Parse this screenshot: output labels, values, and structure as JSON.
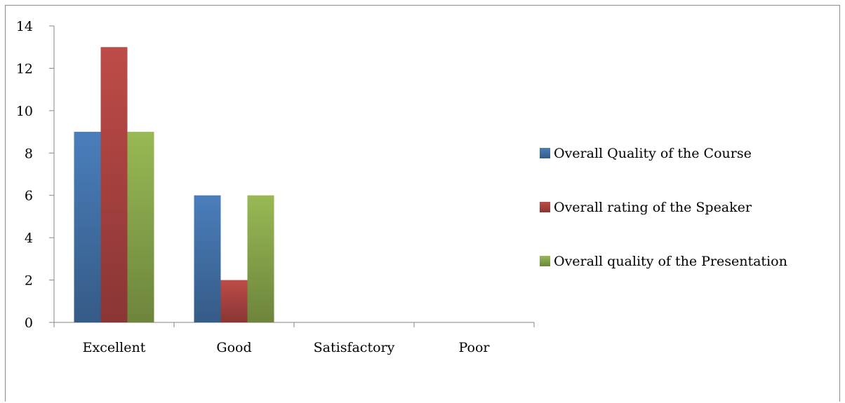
{
  "chart_data": {
    "type": "bar",
    "categories": [
      "Excellent",
      "Good",
      "Satisfactory",
      "Poor"
    ],
    "series": [
      {
        "name": "Overall Quality of the Course",
        "values": [
          9,
          6,
          0,
          0
        ],
        "color": "#4a7ebb"
      },
      {
        "name": "Overall rating of the Speaker",
        "values": [
          13,
          2,
          0,
          0
        ],
        "color": "#be4b48"
      },
      {
        "name": "Overall quality of the Presentation",
        "values": [
          9,
          6,
          0,
          0
        ],
        "color": "#98b954"
      }
    ],
    "ylim": [
      0,
      14
    ],
    "yticks": [
      0,
      2,
      4,
      6,
      8,
      10,
      12,
      14
    ],
    "grid": false,
    "legend_position": "right"
  }
}
